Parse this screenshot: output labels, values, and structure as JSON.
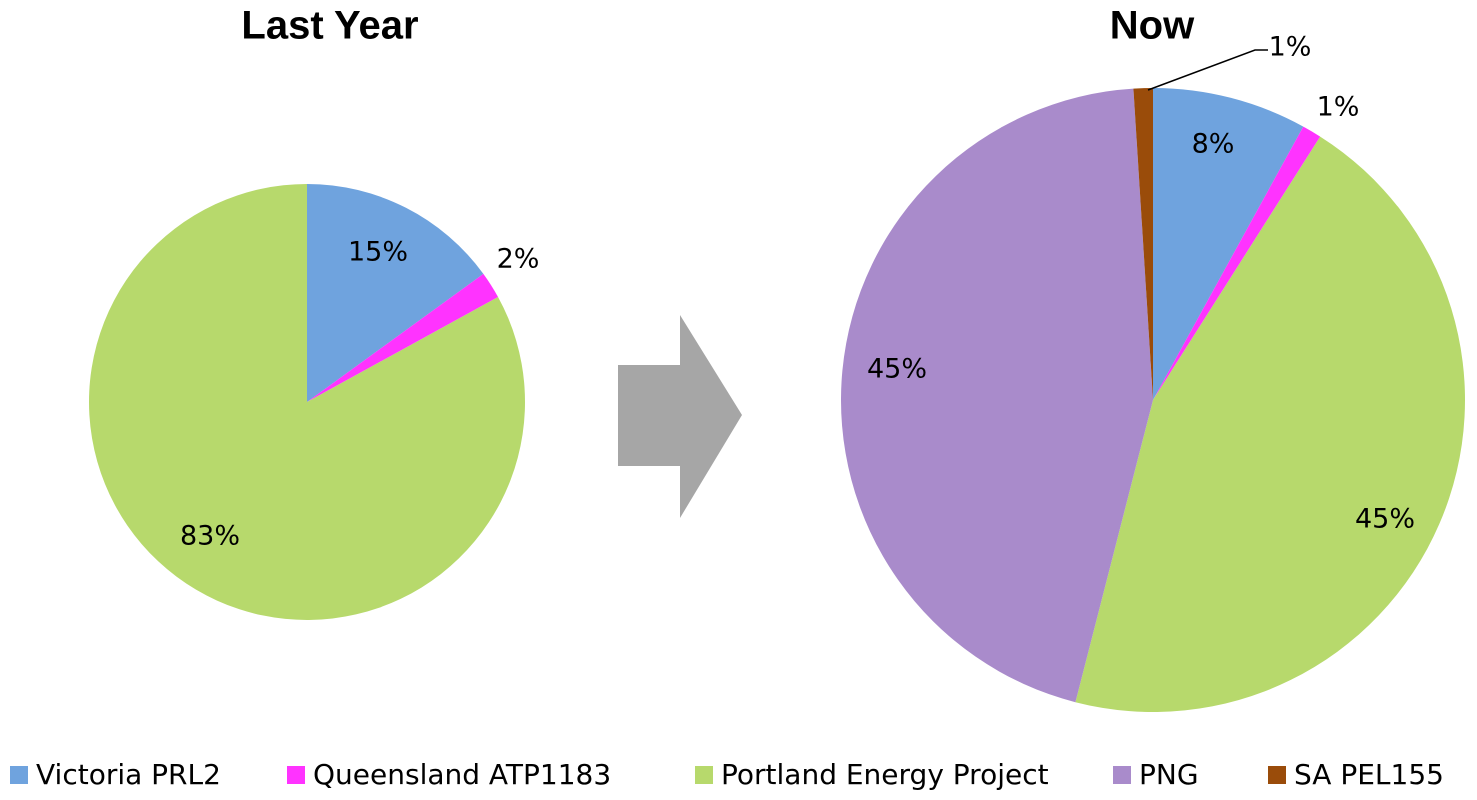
{
  "legend": {
    "labels": [
      "Victoria PRL2",
      "Queensland ATP1183",
      "Portland Energy Project",
      "PNG",
      "SA PEL155"
    ],
    "colors": [
      "#6fa3de",
      "#ff33ff",
      "#b7d96c",
      "#a98bcb",
      "#9a4c0a"
    ]
  },
  "chart_data": [
    {
      "type": "pie",
      "title": "Last Year",
      "values": [
        15,
        2,
        83,
        null,
        null
      ],
      "value_labels": [
        "15%",
        "2%",
        "83%",
        null,
        null
      ]
    },
    {
      "type": "pie",
      "title": "Now",
      "values": [
        8,
        1,
        45,
        45,
        1
      ],
      "value_labels": [
        "8%",
        "1%",
        "45%",
        "45%",
        "1%"
      ]
    }
  ]
}
